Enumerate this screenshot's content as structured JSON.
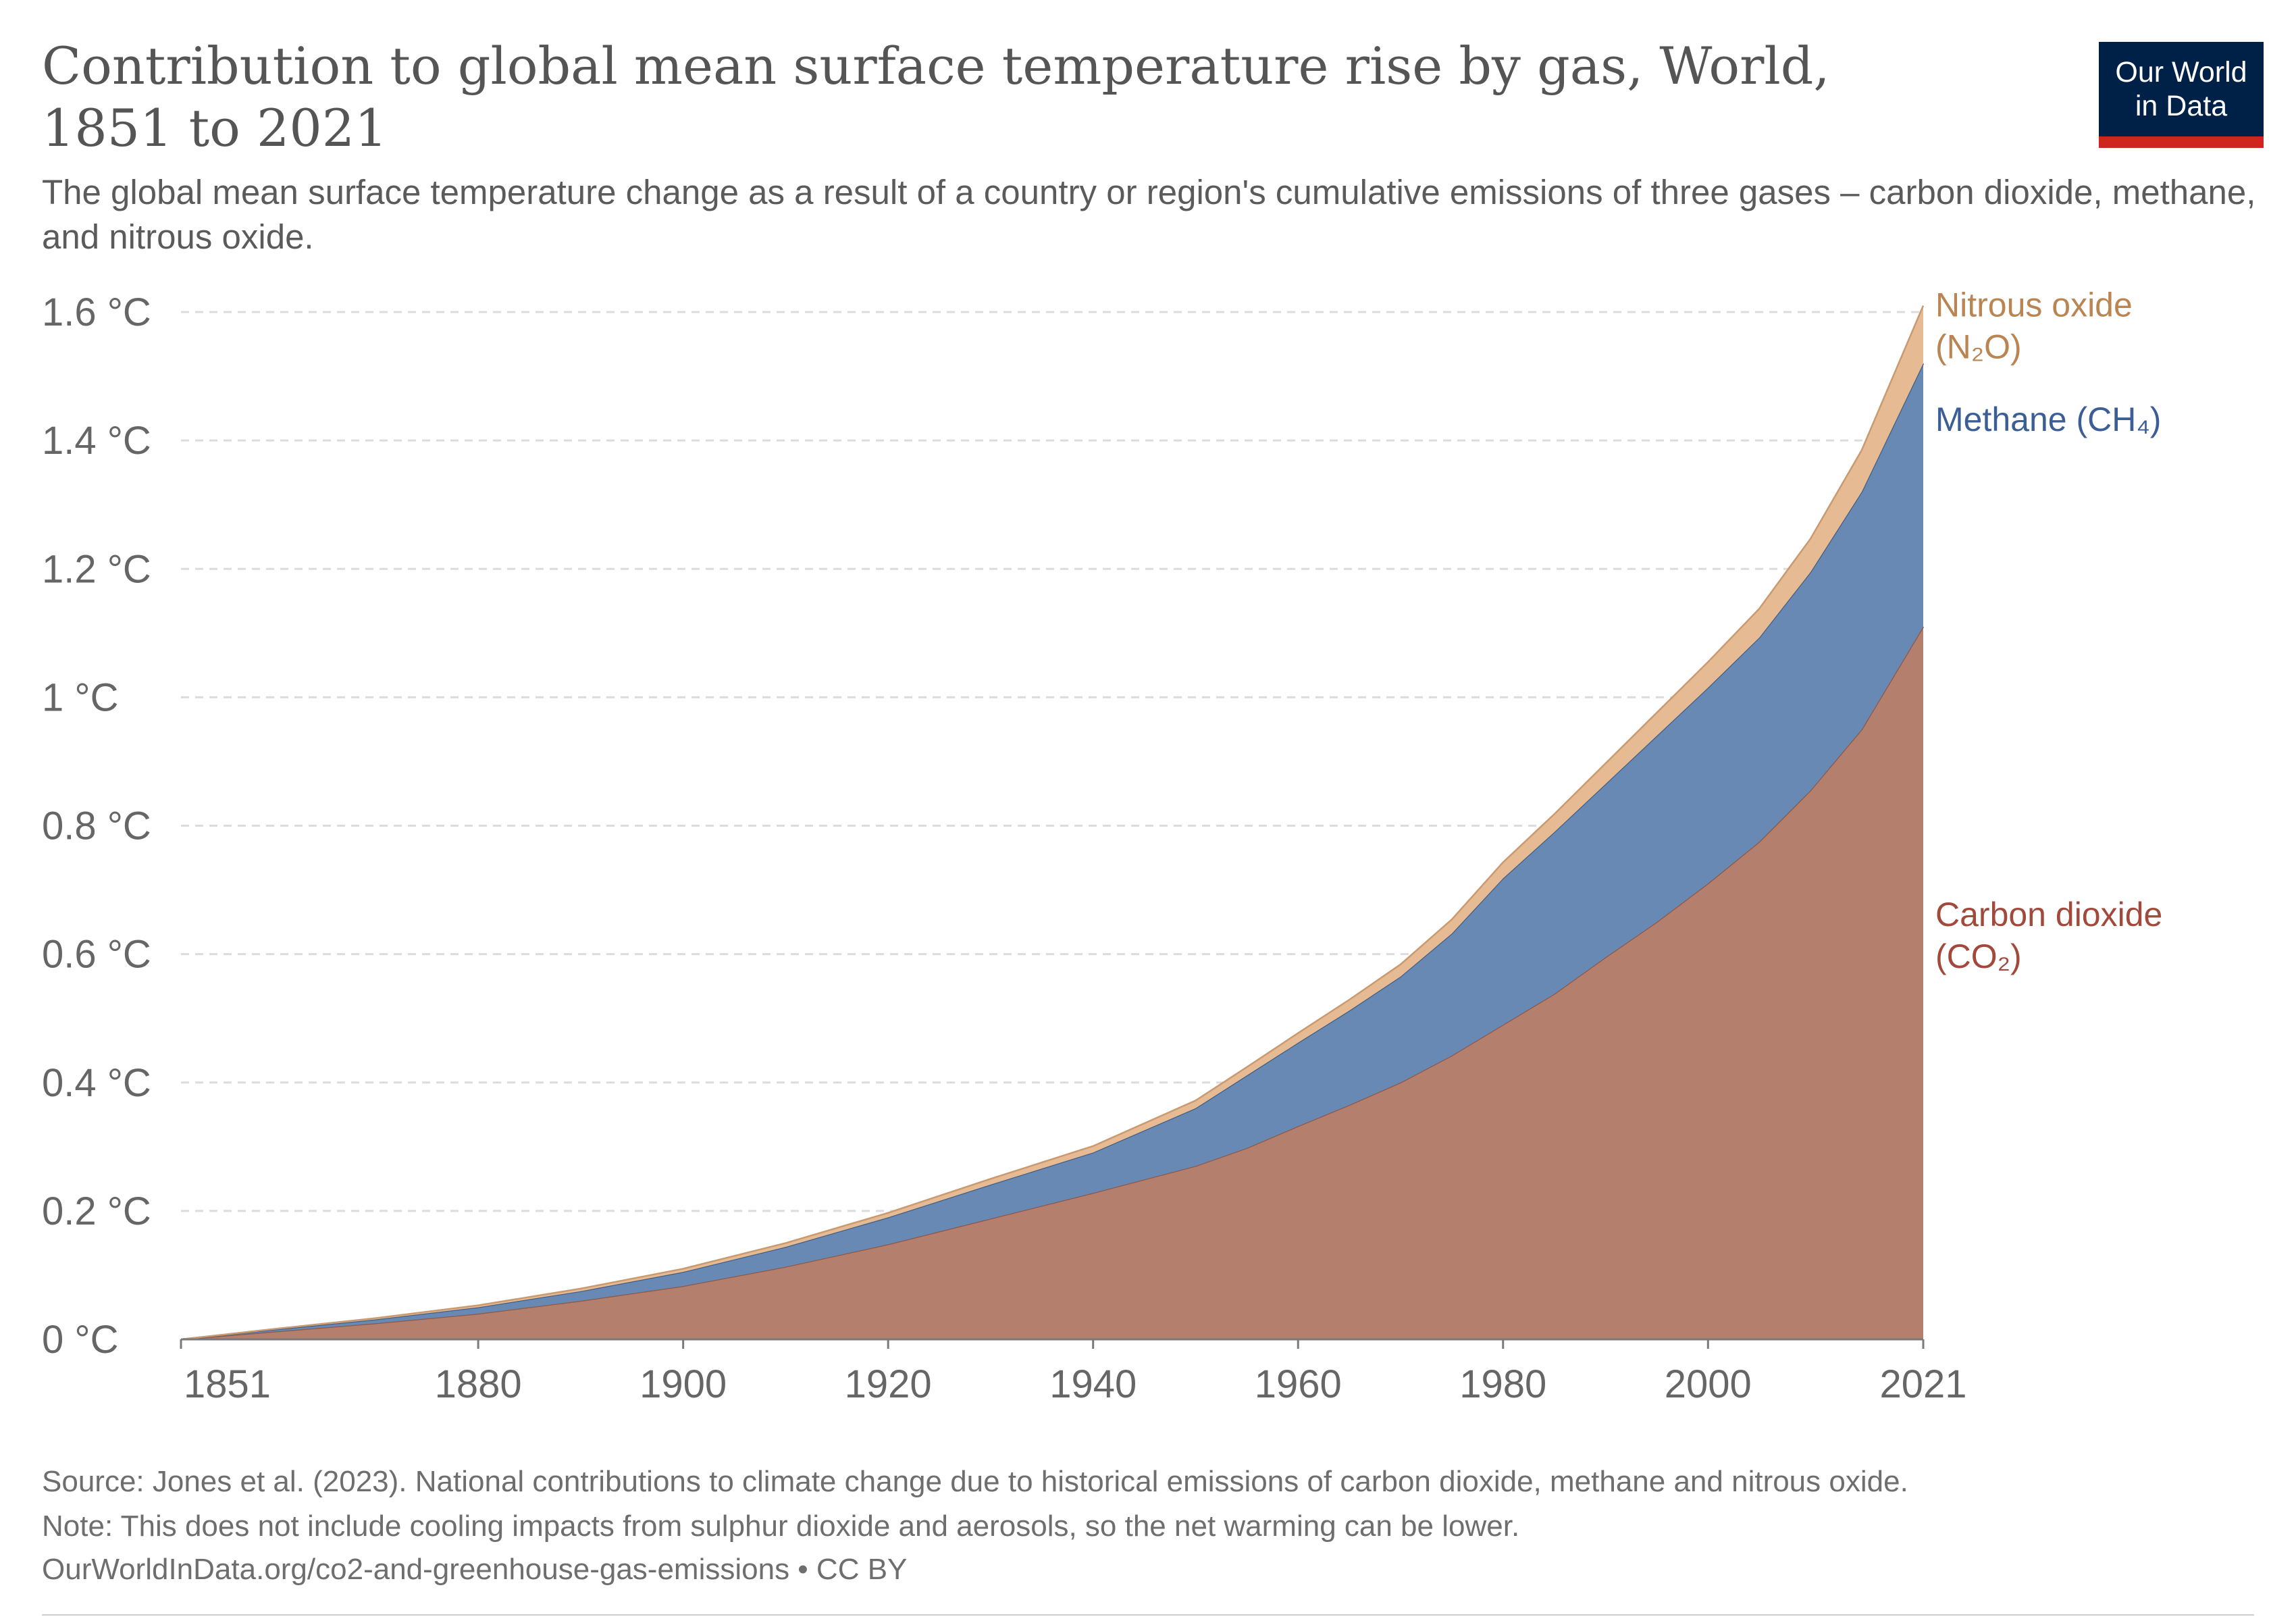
{
  "header": {
    "title": "Contribution to global mean surface temperature rise by gas, World, 1851 to 2021",
    "subtitle": "The global mean surface temperature change as a result of a country or region's cumulative emissions of three gases – carbon dioxide, methane, and nitrous oxide."
  },
  "logo": {
    "line1": "Our World",
    "line2": "in Data",
    "bg_color": "#002147",
    "accent_color": "#ce261e"
  },
  "footer": {
    "source": "Source: Jones et al. (2023). National contributions to climate change due to historical emissions of carbon dioxide, methane and nitrous oxide.",
    "note": "Note: This does not include cooling impacts from sulphur dioxide and aerosols, so the net warming can be lower.",
    "url": "OurWorldInData.org/co2-and-greenhouse-gas-emissions • CC BY"
  },
  "chart_data": {
    "type": "area",
    "stacked": true,
    "unit": "°C",
    "grid": true,
    "ylim": [
      0,
      1.6
    ],
    "xlim": [
      1851,
      2021
    ],
    "y_ticks": [
      0,
      0.2,
      0.4,
      0.6,
      0.8,
      1,
      1.2,
      1.4,
      1.6
    ],
    "y_tick_labels": [
      "0 °C",
      "0.2 °C",
      "0.4 °C",
      "0.6 °C",
      "0.8 °C",
      "1 °C",
      "1.2 °C",
      "1.4 °C",
      "1.6 °C"
    ],
    "x_ticks": [
      1851,
      1880,
      1900,
      1920,
      1940,
      1960,
      1980,
      2000,
      2021
    ],
    "x_tick_labels": [
      "1851",
      "1880",
      "1900",
      "1920",
      "1940",
      "1960",
      "1980",
      "2000",
      "2021"
    ],
    "x": [
      1851,
      1860,
      1870,
      1880,
      1890,
      1900,
      1910,
      1920,
      1930,
      1940,
      1950,
      1955,
      1960,
      1965,
      1970,
      1975,
      1980,
      1985,
      1990,
      1995,
      2000,
      2005,
      2010,
      2015,
      2021
    ],
    "series": [
      {
        "name": "Carbon dioxide (CO₂)",
        "label_lines": [
          "Carbon dioxide",
          "(CO₂)"
        ],
        "color": "#b47f6d",
        "stroke": "#8f5745",
        "label_color": "#a2493b",
        "values": [
          0,
          0.012,
          0.025,
          0.04,
          0.06,
          0.083,
          0.113,
          0.148,
          0.188,
          0.228,
          0.27,
          0.298,
          0.332,
          0.365,
          0.4,
          0.442,
          0.49,
          0.538,
          0.595,
          0.65,
          0.71,
          0.775,
          0.855,
          0.95,
          1.11
        ]
      },
      {
        "name": "Methane (CH₄)",
        "label_lines": [
          "Methane (CH₄)"
        ],
        "color": "#6789b4",
        "stroke": "#3f5f88",
        "label_color": "#3c5e97",
        "values": [
          0,
          0.003,
          0.006,
          0.01,
          0.015,
          0.022,
          0.031,
          0.042,
          0.053,
          0.063,
          0.09,
          0.113,
          0.13,
          0.147,
          0.165,
          0.19,
          0.228,
          0.252,
          0.27,
          0.29,
          0.305,
          0.318,
          0.34,
          0.37,
          0.41
        ]
      },
      {
        "name": "Nitrous oxide (N₂O)",
        "label_lines": [
          "Nitrous oxide",
          "(N₂O)"
        ],
        "color": "#e6bb94",
        "stroke": "#c99a70",
        "label_color": "#b98552",
        "values": [
          0,
          0.001,
          0.002,
          0.003,
          0.004,
          0.005,
          0.006,
          0.007,
          0.009,
          0.01,
          0.012,
          0.013,
          0.015,
          0.017,
          0.019,
          0.022,
          0.025,
          0.028,
          0.032,
          0.036,
          0.04,
          0.045,
          0.052,
          0.065,
          0.09
        ]
      }
    ]
  }
}
